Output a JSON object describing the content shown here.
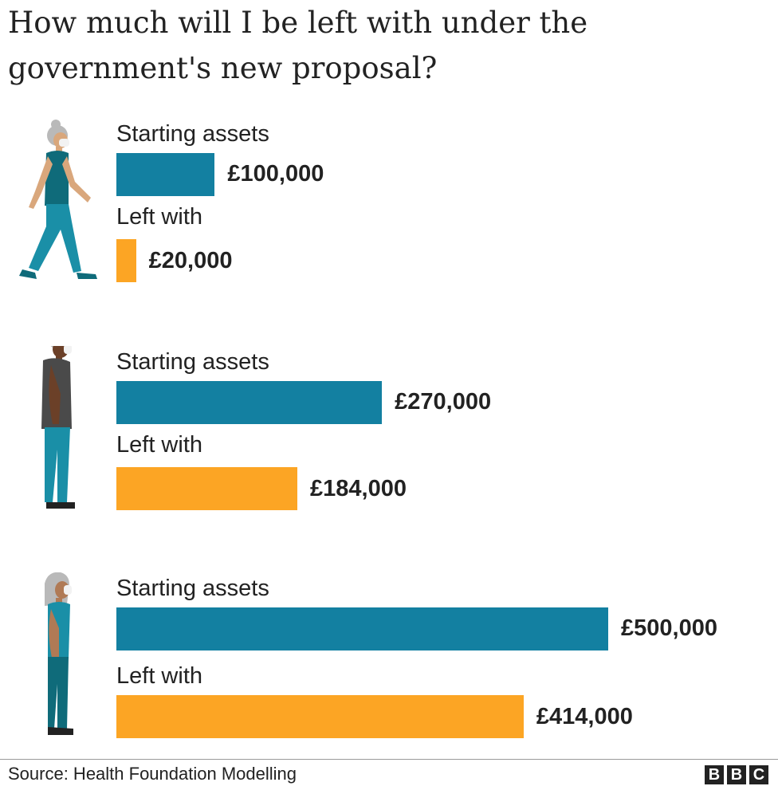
{
  "chart_data": {
    "type": "bar",
    "title": "How much will I be left with under the government's new proposal?",
    "series_labels": {
      "start": "Starting assets",
      "left": "Left with"
    },
    "groups": [
      {
        "start_value": 100000,
        "start_label": "£100,000",
        "left_value": 20000,
        "left_label": "£20,000"
      },
      {
        "start_value": 270000,
        "start_label": "£270,000",
        "left_value": 184000,
        "left_label": "£184,000"
      },
      {
        "start_value": 500000,
        "start_label": "£500,000",
        "left_value": 414000,
        "left_label": "£414,000"
      }
    ],
    "xlim": [
      0,
      500000
    ],
    "colors": {
      "start": "#1380a1",
      "left": "#fca524"
    },
    "grid": false
  },
  "footer": {
    "source": "Source: Health Foundation Modelling",
    "logo": [
      "B",
      "B",
      "C"
    ]
  },
  "icons": [
    "walking-woman-icon",
    "standing-man-icon",
    "standing-woman-icon"
  ]
}
